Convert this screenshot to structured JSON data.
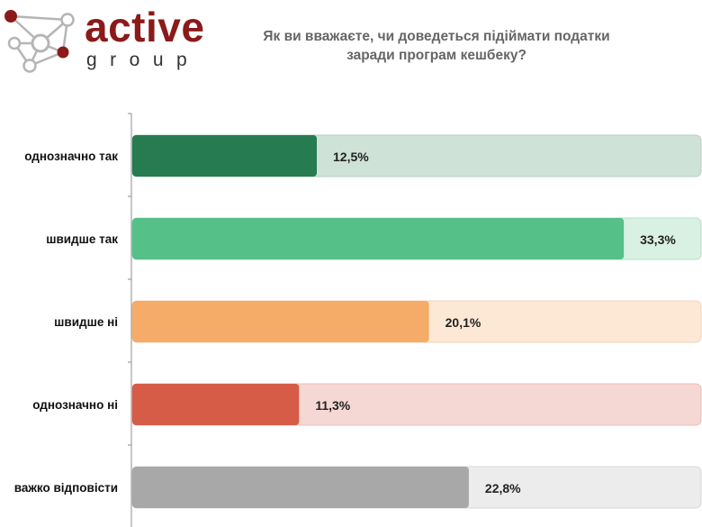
{
  "logo": {
    "brand_main": "active",
    "brand_sub": "group"
  },
  "chart_data": {
    "type": "bar",
    "orientation": "horizontal",
    "title": "Як ви вважаєте, чи доведеться підіймати податки заради програм кешбеку?",
    "title_lines": [
      "Як ви вважаєте, чи доведеться підіймати податки",
      "заради програм кешбеку?"
    ],
    "categories": [
      "однозначно так",
      "швидше так",
      "швидше ні",
      "однозначно ні",
      "важко відповісти"
    ],
    "values": [
      12.5,
      33.3,
      20.1,
      11.3,
      22.8
    ],
    "value_labels": [
      "12,5%",
      "33,3%",
      "20,1%",
      "11,3%",
      "22,8%"
    ],
    "xlim": [
      0,
      35
    ],
    "colors": [
      "#277b51",
      "#55c088",
      "#f4ac68",
      "#d65c48",
      "#a8a8a8"
    ],
    "track_colors": [
      "#cfe2d8",
      "#d8f1e2",
      "#fde8d6",
      "#f5d7d4",
      "#ececec"
    ],
    "track_border_colors": [
      "#b7cfc2",
      "#b5dec6",
      "#f5d2b8",
      "#eebdb7",
      "#d9d9d9"
    ],
    "grid": false,
    "legend": "none"
  }
}
